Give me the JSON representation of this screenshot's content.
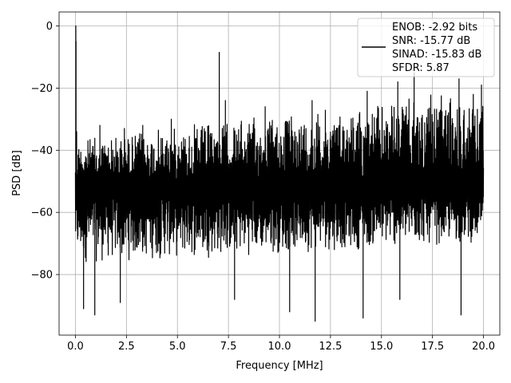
{
  "chart_data": {
    "type": "line",
    "xlabel": "Frequency [MHz]",
    "ylabel": "PSD [dB]",
    "xlim": [
      -0.8,
      20.8
    ],
    "ylim": [
      -99.5,
      4.5
    ],
    "xticks": [
      0.0,
      2.5,
      5.0,
      7.5,
      10.0,
      12.5,
      15.0,
      17.5,
      20.0
    ],
    "xtick_labels": [
      "0.0",
      "2.5",
      "5.0",
      "7.5",
      "10.0",
      "12.5",
      "15.0",
      "17.5",
      "20.0"
    ],
    "yticks": [
      0,
      -20,
      -40,
      -60,
      -80
    ],
    "ytick_labels": [
      "0",
      "−20",
      "−40",
      "−60",
      "−80"
    ],
    "grid": true,
    "legend_position": "upper-right",
    "legend_lines": [
      "ENOB: -2.92 bits",
      "SNR: -15.77 dB",
      "SINAD: -15.83 dB",
      "SFDR: 5.87"
    ],
    "series": [
      {
        "color": "#000000",
        "noise_floor": {
          "f_start": 0.0,
          "f_end": 20.0,
          "upper_envelope_start": -36,
          "upper_envelope_end": -20,
          "lower_envelope_start": -77,
          "lower_envelope_end": -70,
          "typical_center": -52
        },
        "peaks": [
          {
            "f": 0.02,
            "db": 0.0
          },
          {
            "f": 0.03,
            "db": -5.0
          },
          {
            "f": 0.06,
            "db": -34.0
          },
          {
            "f": 1.2,
            "db": -32.0
          },
          {
            "f": 2.4,
            "db": -33.0
          },
          {
            "f": 3.3,
            "db": -32.0
          },
          {
            "f": 4.7,
            "db": -30.0
          },
          {
            "f": 7.05,
            "db": -8.5
          },
          {
            "f": 7.35,
            "db": -24.0
          },
          {
            "f": 9.3,
            "db": -26.0
          },
          {
            "f": 11.6,
            "db": -24.0
          },
          {
            "f": 14.3,
            "db": -21.0
          },
          {
            "f": 15.8,
            "db": -18.0
          },
          {
            "f": 16.6,
            "db": -15.0
          },
          {
            "f": 18.8,
            "db": -17.0
          },
          {
            "f": 19.9,
            "db": -19.0
          }
        ],
        "dips": [
          {
            "f": 0.4,
            "db": -91.0
          },
          {
            "f": 0.95,
            "db": -93.0
          },
          {
            "f": 2.2,
            "db": -89.0
          },
          {
            "f": 7.8,
            "db": -88.0
          },
          {
            "f": 10.5,
            "db": -92.0
          },
          {
            "f": 11.75,
            "db": -95.0
          },
          {
            "f": 14.1,
            "db": -94.0
          },
          {
            "f": 15.9,
            "db": -88.0
          },
          {
            "f": 18.9,
            "db": -93.0
          }
        ]
      }
    ]
  }
}
